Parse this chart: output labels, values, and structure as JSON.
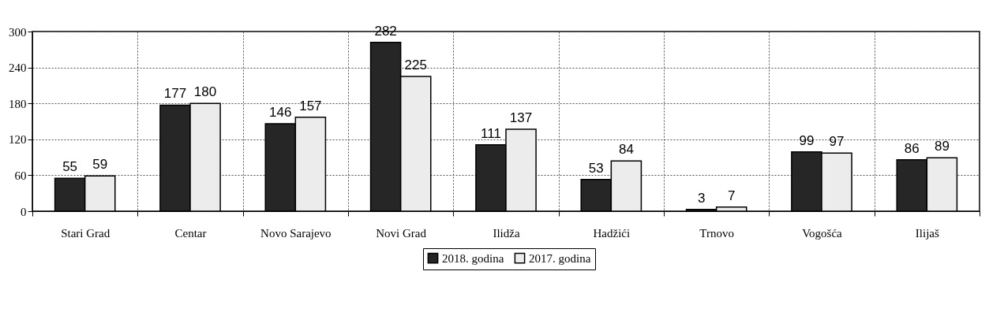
{
  "chart_data": {
    "type": "bar",
    "categories": [
      "Stari Grad",
      "Centar",
      "Novo Sarajevo",
      "Novi Grad",
      "Ilidža",
      "Hadžići",
      "Trnovo",
      "Vogošća",
      "Ilijaš"
    ],
    "series": [
      {
        "name": "2018. godina",
        "color": "#262626",
        "values": [
          55,
          177,
          146,
          282,
          111,
          53,
          3,
          99,
          86
        ]
      },
      {
        "name": "2017. godina",
        "color": "#ececec",
        "values": [
          59,
          180,
          157,
          225,
          137,
          84,
          7,
          97,
          89
        ]
      }
    ],
    "ylim": [
      0,
      300
    ],
    "yticks": [
      0,
      60,
      120,
      180,
      240,
      300
    ],
    "grid": true,
    "legend": "bottom",
    "data_labels": true
  }
}
